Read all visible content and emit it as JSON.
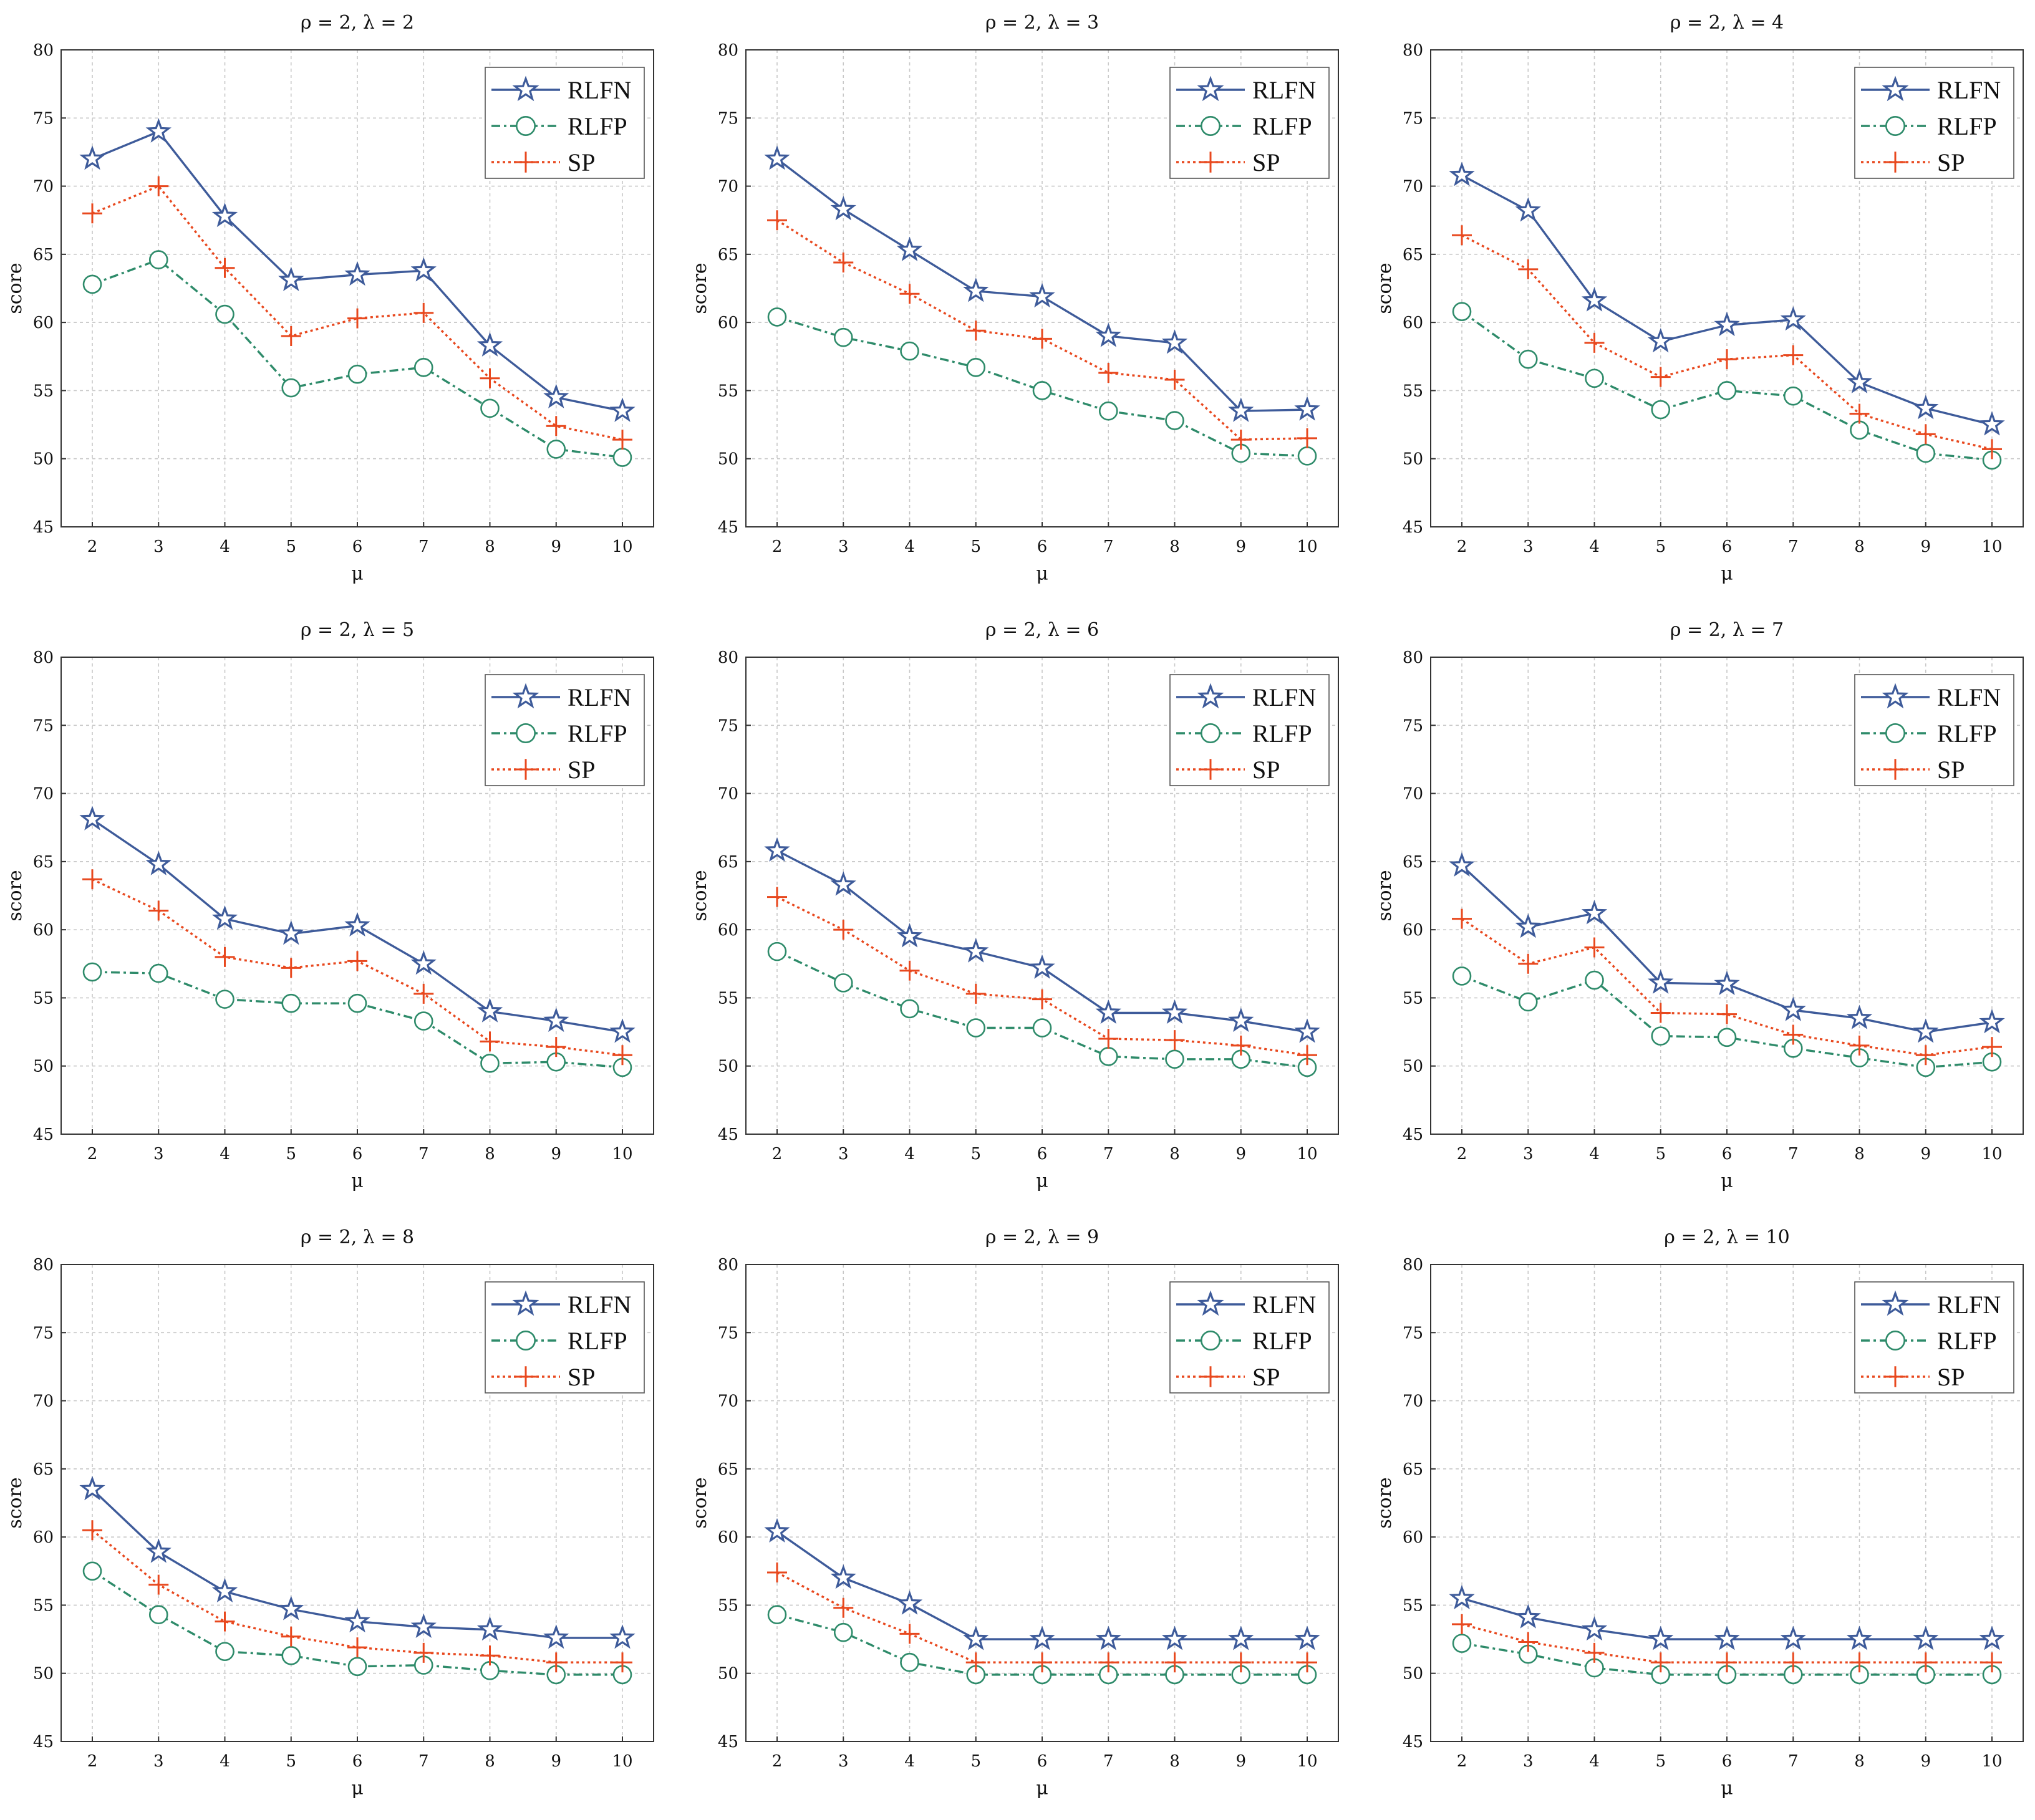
{
  "colors": {
    "RLFN": "#3e5b9a",
    "RLFP": "#2e8b6a",
    "SP": "#e8481e",
    "grid": "#c8c8c8"
  },
  "chart_data": [
    {
      "type": "line",
      "title": "ρ = 2, λ = 2",
      "xlabel": "μ",
      "ylabel": "score",
      "ylim": [
        45,
        80
      ],
      "yticks": [
        "45",
        "50",
        "55",
        "60",
        "65",
        "70",
        "75",
        "80"
      ],
      "x": [
        "2",
        "3",
        "4",
        "5",
        "6",
        "7",
        "8",
        "9",
        "10"
      ],
      "legend": [
        "RLFN",
        "RLFP",
        "SP"
      ],
      "series": [
        {
          "name": "RLFN",
          "values": [
            72.0,
            74.0,
            67.8,
            63.1,
            63.5,
            63.8,
            58.3,
            54.5,
            53.5
          ]
        },
        {
          "name": "RLFP",
          "values": [
            62.8,
            64.6,
            60.6,
            55.2,
            56.2,
            56.7,
            53.7,
            50.7,
            50.1
          ]
        },
        {
          "name": "SP",
          "values": [
            68.0,
            70.0,
            64.0,
            59.0,
            60.3,
            60.7,
            55.9,
            52.4,
            51.4
          ]
        }
      ]
    },
    {
      "type": "line",
      "title": "ρ = 2, λ = 3",
      "xlabel": "μ",
      "ylabel": "score",
      "ylim": [
        45,
        80
      ],
      "yticks": [
        "45",
        "50",
        "55",
        "60",
        "65",
        "70",
        "75",
        "80"
      ],
      "x": [
        "2",
        "3",
        "4",
        "5",
        "6",
        "7",
        "8",
        "9",
        "10"
      ],
      "legend": [
        "RLFN",
        "RLFP",
        "SP"
      ],
      "series": [
        {
          "name": "RLFN",
          "values": [
            72.0,
            68.3,
            65.3,
            62.3,
            61.9,
            59.0,
            58.5,
            53.5,
            53.6
          ]
        },
        {
          "name": "RLFP",
          "values": [
            60.4,
            58.9,
            57.9,
            56.7,
            55.0,
            53.5,
            52.8,
            50.4,
            50.2
          ]
        },
        {
          "name": "SP",
          "values": [
            67.5,
            64.4,
            62.1,
            59.4,
            58.8,
            56.3,
            55.8,
            51.4,
            51.5
          ]
        }
      ]
    },
    {
      "type": "line",
      "title": "ρ = 2, λ = 4",
      "xlabel": "μ",
      "ylabel": "score",
      "ylim": [
        45,
        80
      ],
      "yticks": [
        "45",
        "50",
        "55",
        "60",
        "65",
        "70",
        "75",
        "80"
      ],
      "x": [
        "2",
        "3",
        "4",
        "5",
        "6",
        "7",
        "8",
        "9",
        "10"
      ],
      "legend": [
        "RLFN",
        "RLFP",
        "SP"
      ],
      "series": [
        {
          "name": "RLFN",
          "values": [
            70.8,
            68.2,
            61.6,
            58.6,
            59.8,
            60.2,
            55.6,
            53.7,
            52.5
          ]
        },
        {
          "name": "RLFP",
          "values": [
            60.8,
            57.3,
            55.9,
            53.6,
            55.0,
            54.6,
            52.1,
            50.4,
            49.9
          ]
        },
        {
          "name": "SP",
          "values": [
            66.4,
            63.9,
            58.5,
            56.0,
            57.3,
            57.6,
            53.3,
            51.8,
            50.7
          ]
        }
      ]
    },
    {
      "type": "line",
      "title": "ρ = 2, λ = 5",
      "xlabel": "μ",
      "ylabel": "score",
      "ylim": [
        45,
        80
      ],
      "yticks": [
        "45",
        "50",
        "55",
        "60",
        "65",
        "70",
        "75",
        "80"
      ],
      "x": [
        "2",
        "3",
        "4",
        "5",
        "6",
        "7",
        "8",
        "9",
        "10"
      ],
      "legend": [
        "RLFN",
        "RLFP",
        "SP"
      ],
      "series": [
        {
          "name": "RLFN",
          "values": [
            68.1,
            64.8,
            60.8,
            59.7,
            60.3,
            57.5,
            54.0,
            53.3,
            52.5
          ]
        },
        {
          "name": "RLFP",
          "values": [
            56.9,
            56.8,
            54.9,
            54.6,
            54.6,
            53.3,
            50.2,
            50.3,
            49.9
          ]
        },
        {
          "name": "SP",
          "values": [
            63.7,
            61.4,
            58.0,
            57.2,
            57.7,
            55.3,
            51.8,
            51.4,
            50.8
          ]
        }
      ]
    },
    {
      "type": "line",
      "title": "ρ = 2, λ = 6",
      "xlabel": "μ",
      "ylabel": "score",
      "ylim": [
        45,
        80
      ],
      "yticks": [
        "45",
        "50",
        "55",
        "60",
        "65",
        "70",
        "75",
        "80"
      ],
      "x": [
        "2",
        "3",
        "4",
        "5",
        "6",
        "7",
        "8",
        "9",
        "10"
      ],
      "legend": [
        "RLFN",
        "RLFP",
        "SP"
      ],
      "series": [
        {
          "name": "RLFN",
          "values": [
            65.8,
            63.3,
            59.5,
            58.4,
            57.2,
            53.9,
            53.9,
            53.3,
            52.5
          ]
        },
        {
          "name": "RLFP",
          "values": [
            58.4,
            56.1,
            54.2,
            52.8,
            52.8,
            50.7,
            50.5,
            50.5,
            49.9
          ]
        },
        {
          "name": "SP",
          "values": [
            62.4,
            60.0,
            57.0,
            55.3,
            54.9,
            52.0,
            51.9,
            51.5,
            50.8
          ]
        }
      ]
    },
    {
      "type": "line",
      "title": "ρ = 2, λ = 7",
      "xlabel": "μ",
      "ylabel": "score",
      "ylim": [
        45,
        80
      ],
      "yticks": [
        "45",
        "50",
        "55",
        "60",
        "65",
        "70",
        "75",
        "80"
      ],
      "x": [
        "2",
        "3",
        "4",
        "5",
        "6",
        "7",
        "8",
        "9",
        "10"
      ],
      "legend": [
        "RLFN",
        "RLFP",
        "SP"
      ],
      "series": [
        {
          "name": "RLFN",
          "values": [
            64.7,
            60.2,
            61.2,
            56.1,
            56.0,
            54.1,
            53.5,
            52.5,
            53.2
          ]
        },
        {
          "name": "RLFP",
          "values": [
            56.6,
            54.7,
            56.3,
            52.2,
            52.1,
            51.3,
            50.6,
            49.9,
            50.3
          ]
        },
        {
          "name": "SP",
          "values": [
            60.8,
            57.5,
            58.7,
            53.9,
            53.8,
            52.3,
            51.5,
            50.8,
            51.4
          ]
        }
      ]
    },
    {
      "type": "line",
      "title": "ρ = 2, λ = 8",
      "xlabel": "μ",
      "ylabel": "score",
      "ylim": [
        45,
        80
      ],
      "yticks": [
        "45",
        "50",
        "55",
        "60",
        "65",
        "70",
        "75",
        "80"
      ],
      "x": [
        "2",
        "3",
        "4",
        "5",
        "6",
        "7",
        "8",
        "9",
        "10"
      ],
      "legend": [
        "RLFN",
        "RLFP",
        "SP"
      ],
      "series": [
        {
          "name": "RLFN",
          "values": [
            63.5,
            58.9,
            56.0,
            54.7,
            53.8,
            53.4,
            53.2,
            52.6,
            52.6
          ]
        },
        {
          "name": "RLFP",
          "values": [
            57.5,
            54.3,
            51.6,
            51.3,
            50.5,
            50.6,
            50.2,
            49.9,
            49.9
          ]
        },
        {
          "name": "SP",
          "values": [
            60.5,
            56.5,
            53.8,
            52.7,
            51.9,
            51.5,
            51.3,
            50.8,
            50.8
          ]
        }
      ]
    },
    {
      "type": "line",
      "title": "ρ = 2, λ = 9",
      "xlabel": "μ",
      "ylabel": "score",
      "ylim": [
        45,
        80
      ],
      "yticks": [
        "45",
        "50",
        "55",
        "60",
        "65",
        "70",
        "75",
        "80"
      ],
      "x": [
        "2",
        "3",
        "4",
        "5",
        "6",
        "7",
        "8",
        "9",
        "10"
      ],
      "legend": [
        "RLFN",
        "RLFP",
        "SP"
      ],
      "series": [
        {
          "name": "RLFN",
          "values": [
            60.4,
            57.0,
            55.1,
            52.5,
            52.5,
            52.5,
            52.5,
            52.5,
            52.5
          ]
        },
        {
          "name": "RLFP",
          "values": [
            54.3,
            53.0,
            50.8,
            49.9,
            49.9,
            49.9,
            49.9,
            49.9,
            49.9
          ]
        },
        {
          "name": "SP",
          "values": [
            57.4,
            54.8,
            52.9,
            50.8,
            50.8,
            50.8,
            50.8,
            50.8,
            50.8
          ]
        }
      ]
    },
    {
      "type": "line",
      "title": "ρ = 2, λ = 10",
      "xlabel": "μ",
      "ylabel": "score",
      "ylim": [
        45,
        80
      ],
      "yticks": [
        "45",
        "50",
        "55",
        "60",
        "65",
        "70",
        "75",
        "80"
      ],
      "x": [
        "2",
        "3",
        "4",
        "5",
        "6",
        "7",
        "8",
        "9",
        "10"
      ],
      "legend": [
        "RLFN",
        "RLFP",
        "SP"
      ],
      "series": [
        {
          "name": "RLFN",
          "values": [
            55.5,
            54.1,
            53.2,
            52.5,
            52.5,
            52.5,
            52.5,
            52.5,
            52.5
          ]
        },
        {
          "name": "RLFP",
          "values": [
            52.2,
            51.4,
            50.4,
            49.9,
            49.9,
            49.9,
            49.9,
            49.9,
            49.9
          ]
        },
        {
          "name": "SP",
          "values": [
            53.6,
            52.3,
            51.5,
            50.8,
            50.8,
            50.8,
            50.8,
            50.8,
            50.8
          ]
        }
      ]
    }
  ]
}
